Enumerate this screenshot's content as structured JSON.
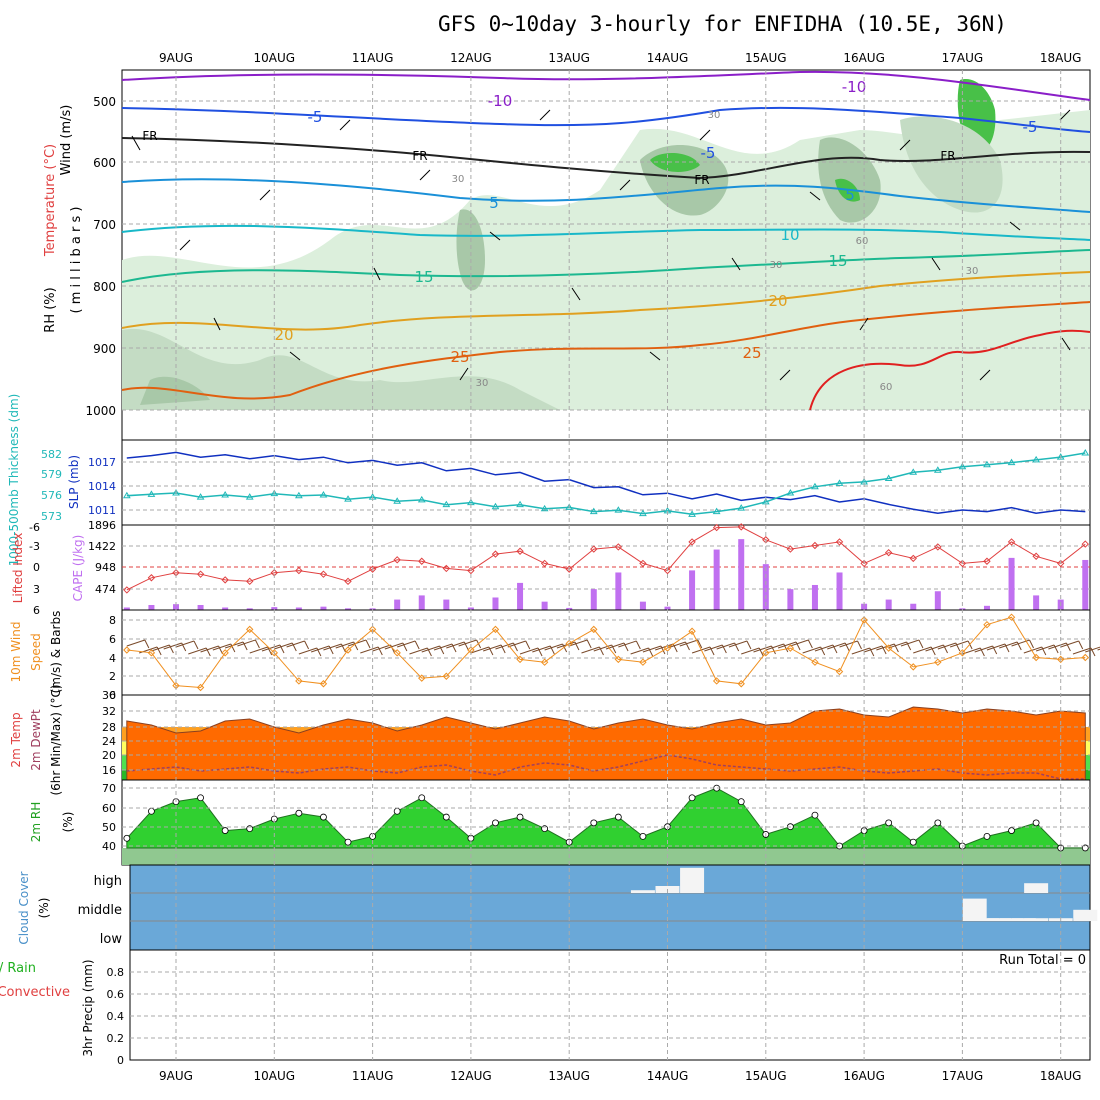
{
  "title": "GFS 0~10day 3-hourly for ENFIDHA (10.5E, 36N)",
  "dates": [
    "9AUG",
    "10AUG",
    "11AUG",
    "12AUG",
    "13AUG",
    "14AUG",
    "15AUG",
    "16AUG",
    "17AUG",
    "18AUG"
  ],
  "colors": {
    "contour_neg10": "#8a1ec8",
    "contour_neg5": "#2050e0",
    "contour_0": "#222222",
    "contour_5": "#1a90d8",
    "contour_10": "#18b8c8",
    "contour_15": "#1cb890",
    "contour_20": "#e0a020",
    "contour_25": "#e06010",
    "contour_30": "#e02020",
    "rh_light": "#dcefdc",
    "rh_mid": "#a8c8a8",
    "rh_dark": "#48c048",
    "slp": "#1030c0",
    "thickness": "#20b8b8",
    "lifted": "#e04040",
    "cape": "#c070f0",
    "wind_speed": "#f09020",
    "barbs": "#7a4a2a",
    "temp_fill": "#ff6a00",
    "temp_band_orange": "#ffa020",
    "temp_band_yellow": "#ffff60",
    "temp_band_green": "#50e050",
    "rh2m_green": "#30d030",
    "rh2m_base": "#90c890",
    "cloud_bg": "#6aa8d8",
    "cloud_white": "#f4f4f4"
  },
  "panels": {
    "upper": {
      "y_label_wind": "Wind (m/s)",
      "y_label_temp": "Temperature (°C)",
      "y_label_rh": "RH (%)",
      "y_label_mb": "( m i l l i b a r s )",
      "ticks": [
        "500",
        "600",
        "700",
        "800",
        "900",
        "1000"
      ],
      "contour_labels": {
        "neg10": "-10",
        "neg5": "-5",
        "fr": "FR",
        "c5": "5",
        "c10": "10",
        "c15": "15",
        "c20": "20",
        "c25": "25",
        "rh30": "30",
        "rh60": "60"
      }
    },
    "slp": {
      "y_label_thk": "1000-500mb Thickness (dm)",
      "y_label_slp": "SLP (mb)",
      "thk_ticks": [
        "582",
        "579",
        "576",
        "573"
      ],
      "slp_ticks": [
        "1017",
        "1014",
        "1011"
      ]
    },
    "cape": {
      "y_label_li": "Lifted Index",
      "y_label_cape": "CAPE (J/kg)",
      "li_ticks": [
        "-6",
        "-3",
        "0",
        "3",
        "6"
      ],
      "cape_ticks": [
        "1896",
        "1422",
        "948",
        "474"
      ]
    },
    "wind": {
      "y_label_1": "10m Wind",
      "y_label_2": "Speed",
      "y_label_3": "(m/s) & Barbs",
      "ticks": [
        "8",
        "6",
        "4",
        "2",
        "0"
      ]
    },
    "temp": {
      "y_label_1": "2m Temp",
      "y_label_2": "2m DewPt",
      "y_label_3": "(6hr Min/Max) (°C)",
      "ticks": [
        "36",
        "32",
        "28",
        "24",
        "20",
        "16"
      ]
    },
    "rh2m": {
      "y_label_1": "2m RH",
      "y_label_2": "(%)",
      "ticks": [
        "70",
        "60",
        "50",
        "40"
      ]
    },
    "cloud": {
      "y_label_1": "Cloud Cover",
      "y_label_2": "(%)",
      "levels": [
        "high",
        "middle",
        "low"
      ]
    },
    "precip": {
      "y_label_1": "Total / Rain",
      "y_label_2": "Convective",
      "y_label_3": "3hr Precip (mm)",
      "ticks": [
        "0.8",
        "0.6",
        "0.4",
        "0.2",
        "0"
      ],
      "run_total": "Run Total = 0"
    }
  },
  "chart_data": [
    {
      "type": "line",
      "title": "Thickness / SLP",
      "x": [
        "8AUG12",
        "8AUG18",
        "9AUG00",
        "9AUG06",
        "9AUG12",
        "9AUG18",
        "10AUG00",
        "10AUG06",
        "10AUG12",
        "10AUG18",
        "11AUG00",
        "11AUG06",
        "11AUG12",
        "11AUG18",
        "12AUG00",
        "12AUG06",
        "12AUG12",
        "12AUG18",
        "13AUG00",
        "13AUG06",
        "13AUG12",
        "13AUG18",
        "14AUG00",
        "14AUG06",
        "14AUG12",
        "14AUG18",
        "15AUG00",
        "15AUG06",
        "15AUG12",
        "15AUG18",
        "16AUG00",
        "16AUG06",
        "16AUG12",
        "16AUG18",
        "17AUG00",
        "17AUG06",
        "17AUG12",
        "17AUG18",
        "18AUG00",
        "18AUG06"
      ],
      "series": [
        {
          "name": "SLP (mb)",
          "values": [
            1017.5,
            1017.8,
            1018.2,
            1017.6,
            1017.9,
            1017.4,
            1017.8,
            1017.3,
            1017.6,
            1016.9,
            1017.2,
            1016.6,
            1016.9,
            1015.9,
            1016.2,
            1015.4,
            1015.7,
            1014.6,
            1014.8,
            1013.8,
            1013.9,
            1012.9,
            1013.1,
            1012.4,
            1013.0,
            1012.2,
            1012.6,
            1012.3,
            1012.8,
            1012.0,
            1012.4,
            1011.7,
            1011.1,
            1010.6,
            1011.0,
            1010.8,
            1011.3,
            1010.6,
            1011.0,
            1010.8
          ]
        },
        {
          "name": "Thickness (dm)",
          "values": [
            575.8,
            576.0,
            576.2,
            575.6,
            575.9,
            575.6,
            576.1,
            575.8,
            575.9,
            575.3,
            575.6,
            575.0,
            575.2,
            574.5,
            574.8,
            574.2,
            574.5,
            573.9,
            574.1,
            573.5,
            573.7,
            573.2,
            573.6,
            573.1,
            573.5,
            574.0,
            574.9,
            576.2,
            577.1,
            577.6,
            577.8,
            578.3,
            579.2,
            579.5,
            580.0,
            580.3,
            580.6,
            581.0,
            581.4,
            582.0
          ]
        }
      ]
    },
    {
      "type": "bar",
      "title": "CAPE (J/kg) & Lifted Index",
      "categories": [
        "8AUG12",
        "8AUG18",
        "9AUG00",
        "9AUG06",
        "9AUG12",
        "9AUG18",
        "10AUG00",
        "10AUG06",
        "10AUG12",
        "10AUG18",
        "11AUG00",
        "11AUG06",
        "11AUG12",
        "11AUG18",
        "12AUG00",
        "12AUG06",
        "12AUG12",
        "12AUG18",
        "13AUG00",
        "13AUG06",
        "13AUG12",
        "13AUG18",
        "14AUG00",
        "14AUG06",
        "14AUG12",
        "14AUG18",
        "15AUG00",
        "15AUG06",
        "15AUG12",
        "15AUG18",
        "16AUG00",
        "16AUG06",
        "16AUG12",
        "16AUG18",
        "17AUG00",
        "17AUG06",
        "17AUG12",
        "17AUG18",
        "18AUG00",
        "18AUG06"
      ],
      "series": [
        {
          "name": "CAPE",
          "values": [
            60,
            120,
            140,
            120,
            60,
            40,
            70,
            60,
            80,
            40,
            40,
            250,
            350,
            250,
            60,
            300,
            650,
            200,
            50,
            500,
            900,
            200,
            80,
            950,
            1450,
            1700,
            1100,
            500,
            600,
            900,
            150,
            250,
            150,
            450,
            40,
            100,
            1250,
            350,
            250,
            1200
          ]
        },
        {
          "name": "Lifted Index",
          "values": [
            3.2,
            1.5,
            0.8,
            1.0,
            1.8,
            2.0,
            0.8,
            0.5,
            1.0,
            2.0,
            0.3,
            -1.0,
            -0.8,
            0.2,
            0.5,
            -1.8,
            -2.2,
            -0.5,
            0.3,
            -2.5,
            -2.8,
            -0.5,
            0.5,
            -3.5,
            -5.5,
            -5.6,
            -3.8,
            -2.5,
            -3.0,
            -3.5,
            -0.5,
            -2.0,
            -1.2,
            -2.8,
            -0.5,
            -0.8,
            -3.5,
            -1.5,
            -0.5,
            -3.2
          ]
        }
      ]
    },
    {
      "type": "line",
      "title": "10m Wind Speed",
      "x": [
        "8AUG12",
        "8AUG18",
        "9AUG00",
        "9AUG06",
        "9AUG12",
        "9AUG18",
        "10AUG00",
        "10AUG06",
        "10AUG12",
        "10AUG18",
        "11AUG00",
        "11AUG06",
        "11AUG12",
        "11AUG18",
        "12AUG00",
        "12AUG06",
        "12AUG12",
        "12AUG18",
        "13AUG00",
        "13AUG06",
        "13AUG12",
        "13AUG18",
        "14AUG00",
        "14AUG06",
        "14AUG12",
        "14AUG18",
        "15AUG00",
        "15AUG06",
        "15AUG12",
        "15AUG18",
        "16AUG00",
        "16AUG06",
        "16AUG12",
        "16AUG18",
        "17AUG00",
        "17AUG06",
        "17AUG12",
        "17AUG18",
        "18AUG00",
        "18AUG06"
      ],
      "series": [
        {
          "name": "Wind speed (m/s)",
          "values": [
            4.8,
            4.5,
            1.0,
            0.8,
            4.5,
            7.0,
            4.5,
            1.5,
            1.2,
            4.8,
            7.0,
            4.5,
            1.8,
            2.0,
            4.8,
            7.0,
            3.8,
            3.5,
            5.5,
            7.0,
            3.8,
            3.5,
            5.0,
            6.8,
            1.5,
            1.2,
            4.5,
            5.0,
            3.5,
            2.5,
            8.0,
            5.0,
            3.0,
            3.5,
            4.5,
            7.5,
            8.3,
            4.0,
            3.8,
            4.0
          ]
        }
      ]
    },
    {
      "type": "area",
      "title": "2m Temp / DewPt",
      "x": [
        "8AUG12",
        "8AUG18",
        "9AUG00",
        "9AUG06",
        "9AUG12",
        "9AUG18",
        "10AUG00",
        "10AUG06",
        "10AUG12",
        "10AUG18",
        "11AUG00",
        "11AUG06",
        "11AUG12",
        "11AUG18",
        "12AUG00",
        "12AUG06",
        "12AUG12",
        "12AUG18",
        "13AUG00",
        "13AUG06",
        "13AUG12",
        "13AUG18",
        "14AUG00",
        "14AUG06",
        "14AUG12",
        "14AUG18",
        "15AUG00",
        "15AUG06",
        "15AUG12",
        "15AUG18",
        "16AUG00",
        "16AUG06",
        "16AUG12",
        "16AUG18",
        "17AUG00",
        "17AUG06",
        "17AUG12",
        "17AUG18",
        "18AUG00",
        "18AUG06"
      ],
      "series": [
        {
          "name": "2m Temp (°C)",
          "values": [
            29.5,
            28.5,
            26.5,
            27.0,
            29.5,
            30.0,
            28.0,
            26.5,
            28.5,
            30.0,
            29.0,
            27.0,
            28.5,
            30.5,
            29.0,
            27.5,
            29.0,
            30.5,
            29.5,
            27.5,
            29.0,
            30.0,
            28.5,
            27.5,
            29.0,
            30.0,
            28.5,
            29.0,
            32.0,
            32.5,
            31.0,
            30.5,
            33.0,
            32.5,
            31.5,
            32.5,
            32.0,
            31.0,
            32.0,
            31.5
          ]
        },
        {
          "name": "2m DewPt (°C)",
          "values": [
            17.0,
            17.5,
            18.0,
            17.0,
            17.5,
            18.0,
            17.0,
            16.5,
            17.5,
            18.0,
            17.0,
            16.5,
            18.0,
            18.5,
            17.0,
            16.0,
            18.0,
            19.0,
            18.5,
            17.0,
            18.0,
            19.5,
            21.0,
            20.0,
            18.5,
            18.0,
            17.5,
            17.0,
            17.5,
            18.0,
            17.0,
            16.5,
            17.0,
            17.5,
            16.5,
            16.0,
            16.5,
            16.5,
            15.0,
            15.0
          ]
        }
      ],
      "ylim": [
        14,
        36
      ]
    },
    {
      "type": "area",
      "title": "2m RH (%)",
      "x": [
        "8AUG12",
        "8AUG18",
        "9AUG00",
        "9AUG06",
        "9AUG12",
        "9AUG18",
        "10AUG00",
        "10AUG06",
        "10AUG12",
        "10AUG18",
        "11AUG00",
        "11AUG06",
        "11AUG12",
        "11AUG18",
        "12AUG00",
        "12AUG06",
        "12AUG12",
        "12AUG18",
        "13AUG00",
        "13AUG06",
        "13AUG12",
        "13AUG18",
        "14AUG00",
        "14AUG06",
        "14AUG12",
        "14AUG18",
        "15AUG00",
        "15AUG06",
        "15AUG12",
        "15AUG18",
        "16AUG00",
        "16AUG06",
        "16AUG12",
        "16AUG18",
        "17AUG00",
        "17AUG06",
        "17AUG12",
        "17AUG18",
        "18AUG00",
        "18AUG06"
      ],
      "series": [
        {
          "name": "2m RH",
          "values": [
            44,
            58,
            63,
            65,
            48,
            49,
            54,
            57,
            55,
            42,
            45,
            58,
            65,
            55,
            44,
            52,
            55,
            49,
            42,
            52,
            55,
            45,
            50,
            65,
            70,
            63,
            46,
            50,
            56,
            40,
            48,
            52,
            42,
            52,
            40,
            45,
            48,
            52,
            39,
            39
          ]
        }
      ],
      "ylim": [
        35,
        72
      ]
    },
    {
      "type": "bar",
      "title": "Cloud Cover",
      "categories": [
        "13AUG18",
        "14AUG00",
        "14AUG06",
        "17AUG03",
        "17AUG06",
        "17AUG09",
        "17AUG12",
        "17AUG15",
        "17AUG18",
        "18AUG00",
        "18AUG06"
      ],
      "series": [
        {
          "name": "high",
          "values": [
            10,
            25,
            90,
            0,
            0,
            0,
            0,
            0,
            35,
            0,
            0
          ]
        },
        {
          "name": "middle",
          "values": [
            0,
            0,
            0,
            80,
            10,
            10,
            10,
            10,
            10,
            10,
            40
          ]
        }
      ]
    },
    {
      "type": "line",
      "title": "3hr Precip (mm)",
      "x": [
        "9AUG",
        "18AUG"
      ],
      "series": [
        {
          "name": "Total / Rain",
          "values": [
            0,
            0
          ]
        },
        {
          "name": "Convective",
          "values": [
            0,
            0
          ]
        }
      ],
      "ylim": [
        0,
        0.9
      ]
    }
  ]
}
